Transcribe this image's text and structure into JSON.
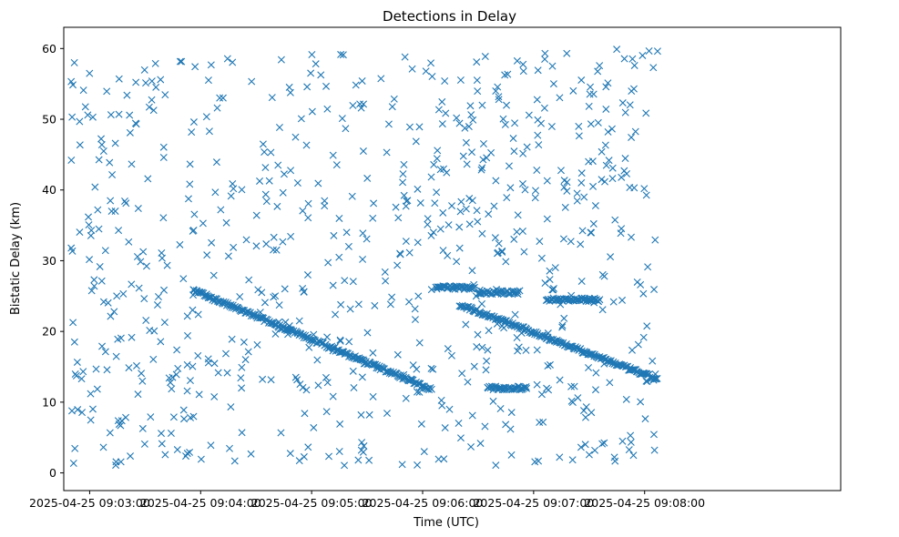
{
  "chart_data": {
    "type": "scatter",
    "title": "Detections in Delay",
    "xlabel": "Time (UTC)",
    "ylabel": "Bistatic Delay (km)",
    "marker": "x",
    "color": "#1f77b4",
    "xlim_seconds": [
      -14,
      406
    ],
    "ylim": [
      -2.5,
      63
    ],
    "x_ticks": [
      {
        "t": 0,
        "label": "2025-04-25 09:03:00"
      },
      {
        "t": 60,
        "label": "2025-04-25 09:04:00"
      },
      {
        "t": 120,
        "label": "2025-04-25 09:05:00"
      },
      {
        "t": 180,
        "label": "2025-04-25 09:06:00"
      },
      {
        "t": 240,
        "label": "2025-04-25 09:07:00"
      },
      {
        "t": 300,
        "label": "2025-04-25 09:08:00"
      }
    ],
    "y_ticks": [
      0,
      10,
      20,
      30,
      40,
      50,
      60
    ],
    "time_range_seconds": [
      -10,
      307
    ],
    "tracks": [
      {
        "name": "main-descending",
        "t_start": 56,
        "t_end": 185,
        "y_start": 25.8,
        "y_end": 11.8
      },
      {
        "name": "right-descending",
        "t_start": 200,
        "t_end": 307,
        "y_start": 23.8,
        "y_end": 13.2
      },
      {
        "name": "band-26",
        "t_start": 187,
        "t_end": 208,
        "y": 26.2
      },
      {
        "name": "band-25.5",
        "t_start": 210,
        "t_end": 232,
        "y": 25.5
      },
      {
        "name": "band-24.8",
        "t_start": 247,
        "t_end": 276,
        "y": 24.5
      },
      {
        "name": "band-12",
        "t_start": 215,
        "t_end": 236,
        "y": 12.0
      }
    ],
    "clutter": {
      "count": 760,
      "t_min": -10,
      "t_max": 307,
      "y_min": 1,
      "y_max": 60,
      "seed": 7
    }
  }
}
